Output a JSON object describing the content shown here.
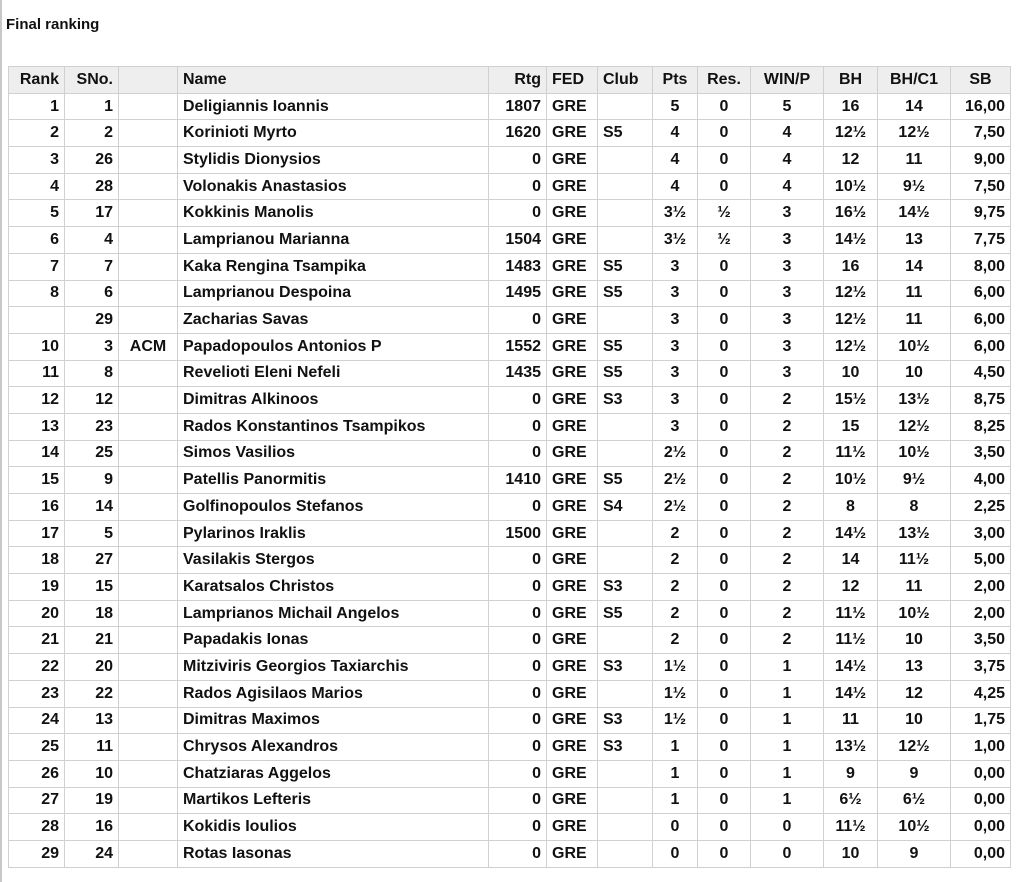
{
  "title": "Final ranking",
  "columns": [
    "Rank",
    "SNo.",
    "",
    "Name",
    "Rtg",
    "FED",
    "Club",
    "Pts",
    "Res.",
    "WIN/P",
    "BH",
    "BH/C1",
    "SB"
  ],
  "rows": [
    [
      "1",
      "1",
      "",
      "Deligiannis Ioannis",
      "1807",
      "GRE",
      "",
      "5",
      "0",
      "5",
      "16",
      "14",
      "16,00"
    ],
    [
      "2",
      "2",
      "",
      "Korinioti Myrto",
      "1620",
      "GRE",
      "S5",
      "4",
      "0",
      "4",
      "12½",
      "12½",
      "7,50"
    ],
    [
      "3",
      "26",
      "",
      "Stylidis Dionysios",
      "0",
      "GRE",
      "",
      "4",
      "0",
      "4",
      "12",
      "11",
      "9,00"
    ],
    [
      "4",
      "28",
      "",
      "Volonakis Anastasios",
      "0",
      "GRE",
      "",
      "4",
      "0",
      "4",
      "10½",
      "9½",
      "7,50"
    ],
    [
      "5",
      "17",
      "",
      "Kokkinis Manolis",
      "0",
      "GRE",
      "",
      "3½",
      "½",
      "3",
      "16½",
      "14½",
      "9,75"
    ],
    [
      "6",
      "4",
      "",
      "Lamprianou Marianna",
      "1504",
      "GRE",
      "",
      "3½",
      "½",
      "3",
      "14½",
      "13",
      "7,75"
    ],
    [
      "7",
      "7",
      "",
      "Kaka Rengina Tsampika",
      "1483",
      "GRE",
      "S5",
      "3",
      "0",
      "3",
      "16",
      "14",
      "8,00"
    ],
    [
      "8",
      "6",
      "",
      "Lamprianou Despoina",
      "1495",
      "GRE",
      "S5",
      "3",
      "0",
      "3",
      "12½",
      "11",
      "6,00"
    ],
    [
      "",
      "29",
      "",
      "Zacharias Savas",
      "0",
      "GRE",
      "",
      "3",
      "0",
      "3",
      "12½",
      "11",
      "6,00"
    ],
    [
      "10",
      "3",
      "ACM",
      "Papadopoulos Antonios P",
      "1552",
      "GRE",
      "S5",
      "3",
      "0",
      "3",
      "12½",
      "10½",
      "6,00"
    ],
    [
      "11",
      "8",
      "",
      "Revelioti Eleni Nefeli",
      "1435",
      "GRE",
      "S5",
      "3",
      "0",
      "3",
      "10",
      "10",
      "4,50"
    ],
    [
      "12",
      "12",
      "",
      "Dimitras Alkinoos",
      "0",
      "GRE",
      "S3",
      "3",
      "0",
      "2",
      "15½",
      "13½",
      "8,75"
    ],
    [
      "13",
      "23",
      "",
      "Rados Konstantinos Tsampikos",
      "0",
      "GRE",
      "",
      "3",
      "0",
      "2",
      "15",
      "12½",
      "8,25"
    ],
    [
      "14",
      "25",
      "",
      "Simos Vasilios",
      "0",
      "GRE",
      "",
      "2½",
      "0",
      "2",
      "11½",
      "10½",
      "3,50"
    ],
    [
      "15",
      "9",
      "",
      "Patellis Panormitis",
      "1410",
      "GRE",
      "S5",
      "2½",
      "0",
      "2",
      "10½",
      "9½",
      "4,00"
    ],
    [
      "16",
      "14",
      "",
      "Golfinopoulos Stefanos",
      "0",
      "GRE",
      "S4",
      "2½",
      "0",
      "2",
      "8",
      "8",
      "2,25"
    ],
    [
      "17",
      "5",
      "",
      "Pylarinos Iraklis",
      "1500",
      "GRE",
      "",
      "2",
      "0",
      "2",
      "14½",
      "13½",
      "3,00"
    ],
    [
      "18",
      "27",
      "",
      "Vasilakis Stergos",
      "0",
      "GRE",
      "",
      "2",
      "0",
      "2",
      "14",
      "11½",
      "5,00"
    ],
    [
      "19",
      "15",
      "",
      "Karatsalos Christos",
      "0",
      "GRE",
      "S3",
      "2",
      "0",
      "2",
      "12",
      "11",
      "2,00"
    ],
    [
      "20",
      "18",
      "",
      "Lamprianos Michail Angelos",
      "0",
      "GRE",
      "S5",
      "2",
      "0",
      "2",
      "11½",
      "10½",
      "2,00"
    ],
    [
      "21",
      "21",
      "",
      "Papadakis Ionas",
      "0",
      "GRE",
      "",
      "2",
      "0",
      "2",
      "11½",
      "10",
      "3,50"
    ],
    [
      "22",
      "20",
      "",
      "Mitziviris Georgios Taxiarchis",
      "0",
      "GRE",
      "S3",
      "1½",
      "0",
      "1",
      "14½",
      "13",
      "3,75"
    ],
    [
      "23",
      "22",
      "",
      "Rados Agisilaos Marios",
      "0",
      "GRE",
      "",
      "1½",
      "0",
      "1",
      "14½",
      "12",
      "4,25"
    ],
    [
      "24",
      "13",
      "",
      "Dimitras Maximos",
      "0",
      "GRE",
      "S3",
      "1½",
      "0",
      "1",
      "11",
      "10",
      "1,75"
    ],
    [
      "25",
      "11",
      "",
      "Chrysos Alexandros",
      "0",
      "GRE",
      "S3",
      "1",
      "0",
      "1",
      "13½",
      "12½",
      "1,00"
    ],
    [
      "26",
      "10",
      "",
      "Chatziaras Aggelos",
      "0",
      "GRE",
      "",
      "1",
      "0",
      "1",
      "9",
      "9",
      "0,00"
    ],
    [
      "27",
      "19",
      "",
      "Martikos Lefteris",
      "0",
      "GRE",
      "",
      "1",
      "0",
      "1",
      "6½",
      "6½",
      "0,00"
    ],
    [
      "28",
      "16",
      "",
      "Kokidis Ioulios",
      "0",
      "GRE",
      "",
      "0",
      "0",
      "0",
      "11½",
      "10½",
      "0,00"
    ],
    [
      "29",
      "24",
      "",
      "Rotas Iasonas",
      "0",
      "GRE",
      "",
      "0",
      "0",
      "0",
      "10",
      "9",
      "0,00"
    ]
  ]
}
